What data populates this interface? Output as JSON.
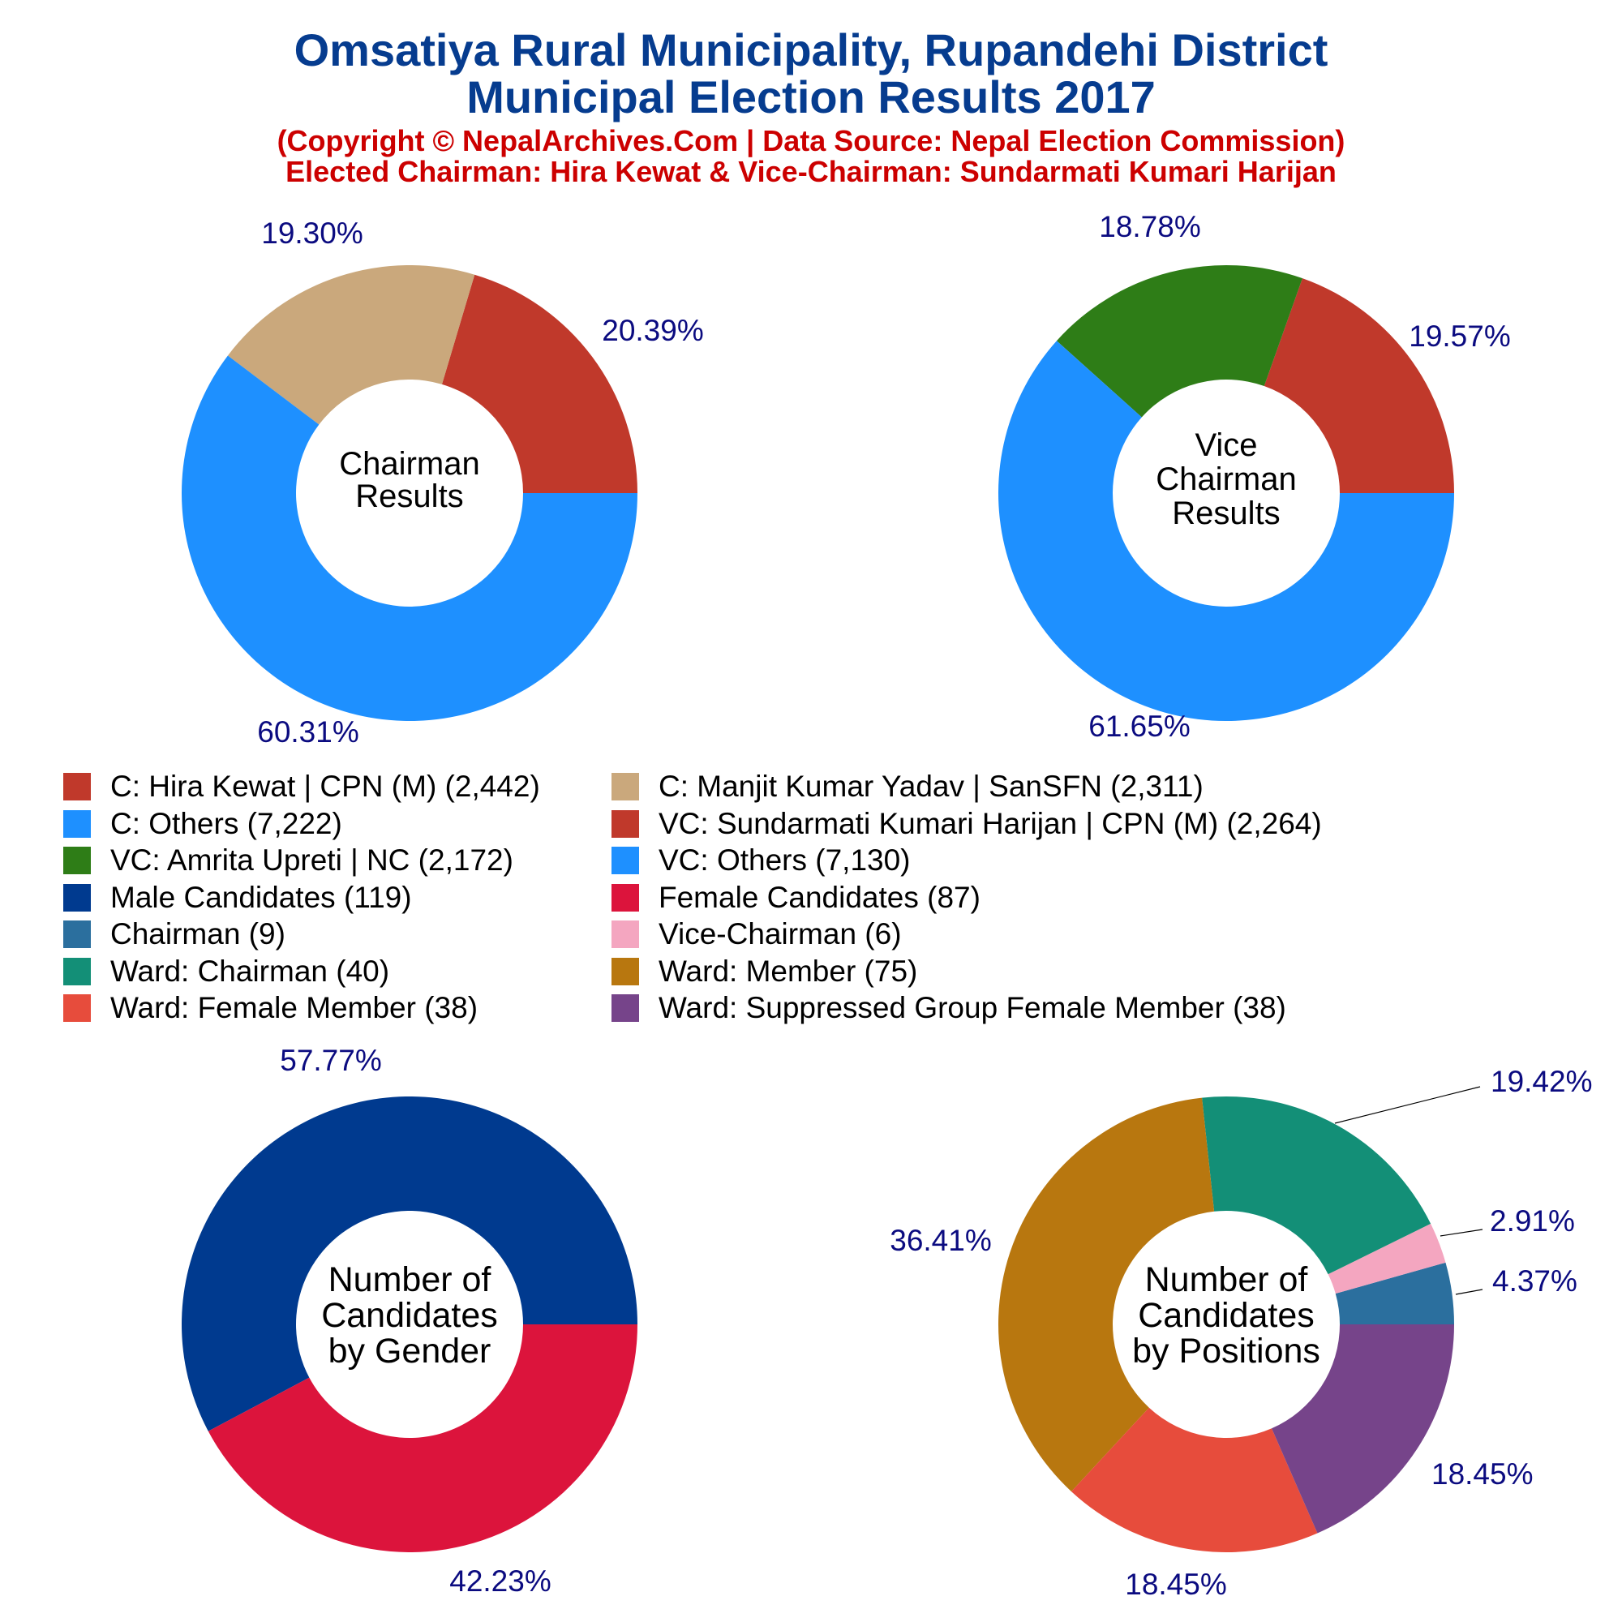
{
  "title_line1": "Omsatiya Rural Municipality, Rupandehi District",
  "title_line2": "Municipal Election Results 2017",
  "subtitle_line1": "(Copyright © NepalArchives.Com | Data Source: Nepal Election Commission)",
  "subtitle_line2": "Elected Chairman: Hira Kewat & Vice-Chairman: Sundarmati Kumari Harijan",
  "legend": [
    {
      "label": "C: Hira Kewat | CPN (M) (2,442)",
      "color": "#c0392b"
    },
    {
      "label": "C: Manjit Kumar Yadav | SanSFN (2,311)",
      "color": "#caa87c"
    },
    {
      "label": "C: Others (7,222)",
      "color": "#1e90ff"
    },
    {
      "label": "VC: Sundarmati Kumari Harijan | CPN (M) (2,264)",
      "color": "#c0392b"
    },
    {
      "label": "VC: Amrita Upreti | NC (2,172)",
      "color": "#2e7d17"
    },
    {
      "label": "VC: Others (7,130)",
      "color": "#1e90ff"
    },
    {
      "label": "Male Candidates (119)",
      "color": "#003a8f"
    },
    {
      "label": "Female Candidates (87)",
      "color": "#dc143c"
    },
    {
      "label": "Chairman (9)",
      "color": "#2b6f9e"
    },
    {
      "label": "Vice-Chairman (6)",
      "color": "#f4a6c0"
    },
    {
      "label": "Ward: Chairman (40)",
      "color": "#138f77"
    },
    {
      "label": "Ward: Member (75)",
      "color": "#b8770f"
    },
    {
      "label": "Ward: Female Member (38)",
      "color": "#e74c3c"
    },
    {
      "label": "Ward: Suppressed Group Female Member (38)",
      "color": "#76448a"
    }
  ],
  "chart_data": [
    {
      "type": "pie",
      "center_label": [
        "Chairman",
        "Results"
      ],
      "slices": [
        {
          "name": "C: Hira Kewat | CPN (M)",
          "value": 2442,
          "pct_label": "20.39%",
          "color": "#c0392b"
        },
        {
          "name": "C: Manjit Kumar Yadav | SanSFN",
          "value": 2311,
          "pct_label": "19.30%",
          "color": "#caa87c"
        },
        {
          "name": "C: Others",
          "value": 7222,
          "pct_label": "60.31%",
          "color": "#1e90ff"
        }
      ]
    },
    {
      "type": "pie",
      "center_label": [
        "Vice",
        "Chairman",
        "Results"
      ],
      "slices": [
        {
          "name": "VC: Sundarmati Kumari Harijan | CPN (M)",
          "value": 2264,
          "pct_label": "19.57%",
          "color": "#c0392b"
        },
        {
          "name": "VC: Amrita Upreti | NC",
          "value": 2172,
          "pct_label": "18.78%",
          "color": "#2e7d17"
        },
        {
          "name": "VC: Others",
          "value": 7130,
          "pct_label": "61.65%",
          "color": "#1e90ff"
        }
      ]
    },
    {
      "type": "pie",
      "center_label": [
        "Number of",
        "Candidates",
        "by Gender"
      ],
      "slices": [
        {
          "name": "Male Candidates",
          "value": 119,
          "pct_label": "57.77%",
          "color": "#003a8f"
        },
        {
          "name": "Female Candidates",
          "value": 87,
          "pct_label": "42.23%",
          "color": "#dc143c"
        }
      ]
    },
    {
      "type": "pie",
      "center_label": [
        "Number of",
        "Candidates",
        "by Positions"
      ],
      "slices": [
        {
          "name": "Chairman",
          "value": 9,
          "pct_label": "4.37%",
          "color": "#2b6f9e"
        },
        {
          "name": "Vice-Chairman",
          "value": 6,
          "pct_label": "2.91%",
          "color": "#f4a6c0"
        },
        {
          "name": "Ward: Chairman",
          "value": 40,
          "pct_label": "19.42%",
          "color": "#138f77"
        },
        {
          "name": "Ward: Member",
          "value": 75,
          "pct_label": "36.41%",
          "color": "#b8770f"
        },
        {
          "name": "Ward: Female Member",
          "value": 38,
          "pct_label": "18.45%",
          "color": "#e74c3c"
        },
        {
          "name": "Ward: Suppressed Group Female Member",
          "value": 38,
          "pct_label": "18.45%",
          "color": "#76448a"
        }
      ]
    }
  ]
}
